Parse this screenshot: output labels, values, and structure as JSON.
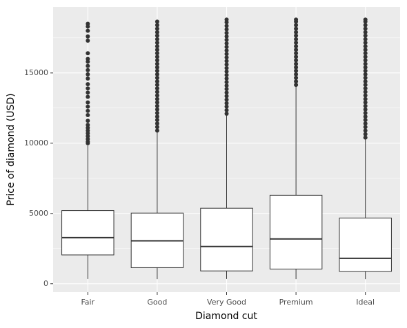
{
  "chart_data": {
    "type": "box",
    "x_label": "Diamond cut",
    "y_label": "Price of diamond (USD)",
    "categories": [
      "Fair",
      "Good",
      "Very Good",
      "Premium",
      "Ideal"
    ],
    "boxes": [
      {
        "min": 337,
        "q1": 2050,
        "median": 3282,
        "q3": 5206,
        "max": 9836,
        "outliers": [
          10000,
          10100,
          10300,
          10500,
          10700,
          10900,
          11100,
          11300,
          11600,
          12000,
          12300,
          12600,
          12900,
          13300,
          13600,
          13900,
          14200,
          14600,
          14900,
          15200,
          15500,
          15800,
          16000,
          16400,
          17300,
          17600,
          18000,
          18300,
          18500
        ]
      },
      {
        "min": 327,
        "q1": 1145,
        "median": 3050,
        "q3": 5028,
        "max": 10847,
        "outliers": [
          10900,
          11150,
          11400,
          11650,
          11900,
          12150,
          12400,
          12650,
          12900,
          13150,
          13400,
          13650,
          13900,
          14150,
          14400,
          14650,
          14900,
          15150,
          15400,
          15650,
          15900,
          16150,
          16400,
          16650,
          16900,
          17150,
          17400,
          17650,
          17900,
          18150,
          18400,
          18650
        ]
      },
      {
        "min": 336,
        "q1": 912,
        "median": 2648,
        "q3": 5373,
        "max": 12041,
        "outliers": [
          12100,
          12350,
          12600,
          12850,
          13100,
          13350,
          13600,
          13850,
          14100,
          14350,
          14600,
          14850,
          15100,
          15350,
          15600,
          15850,
          16100,
          16350,
          16600,
          16850,
          17100,
          17350,
          17600,
          17850,
          18100,
          18350,
          18600,
          18800
        ]
      },
      {
        "min": 326,
        "q1": 1046,
        "median": 3185,
        "q3": 6296,
        "max": 14090,
        "outliers": [
          14150,
          14400,
          14650,
          14900,
          15150,
          15400,
          15650,
          15900,
          16150,
          16400,
          16650,
          16900,
          17150,
          17400,
          17650,
          17900,
          18150,
          18400,
          18650,
          18800
        ]
      },
      {
        "min": 326,
        "q1": 878,
        "median": 1810,
        "q3": 4678,
        "max": 10370,
        "outliers": [
          10400,
          10650,
          10900,
          11150,
          11400,
          11650,
          11900,
          12150,
          12400,
          12650,
          12900,
          13150,
          13400,
          13650,
          13900,
          14150,
          14400,
          14650,
          14900,
          15150,
          15400,
          15650,
          15900,
          16150,
          16400,
          16650,
          16900,
          17150,
          17400,
          17650,
          17900,
          18150,
          18400,
          18650,
          18800
        ]
      }
    ],
    "ylim": [
      -600,
      19700
    ],
    "yticks": [
      0,
      5000,
      10000,
      15000
    ],
    "yminor": [
      2500,
      7500,
      12500,
      17500
    ],
    "grid": true,
    "color": "#333333",
    "box_fill": "#ffffff",
    "panel_color": "#ebebeb"
  }
}
